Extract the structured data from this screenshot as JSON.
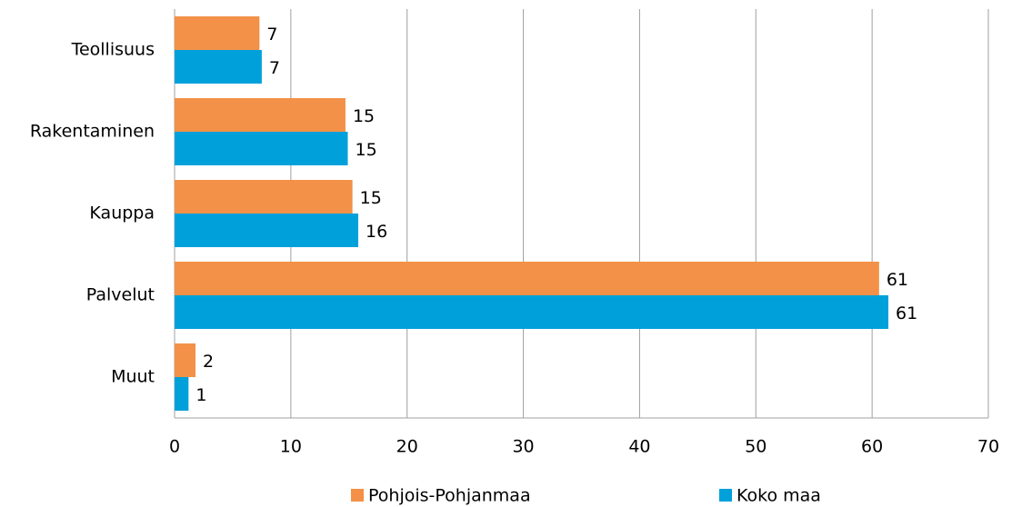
{
  "chart_data": {
    "type": "hbar",
    "categories": [
      "Teollisuus",
      "Rakentaminen",
      "Kauppa",
      "Palvelut",
      "Muut"
    ],
    "series": [
      {
        "name": "Pohjois-Pohjanmaa",
        "color": "#f29147",
        "values": [
          7.3,
          14.7,
          15.3,
          60.6,
          1.8
        ],
        "value_labels": [
          "7",
          "15",
          "15",
          "61",
          "2"
        ]
      },
      {
        "name": "Koko maa",
        "color": "#00a1da",
        "values": [
          7.5,
          14.9,
          15.8,
          61.4,
          1.2
        ],
        "value_labels": [
          "7",
          "15",
          "16",
          "61",
          "1"
        ]
      }
    ],
    "xlim": [
      0,
      70
    ],
    "xticks": [
      0,
      10,
      20,
      30,
      40,
      50,
      60,
      70
    ],
    "grid": true,
    "legend": "bottom"
  }
}
